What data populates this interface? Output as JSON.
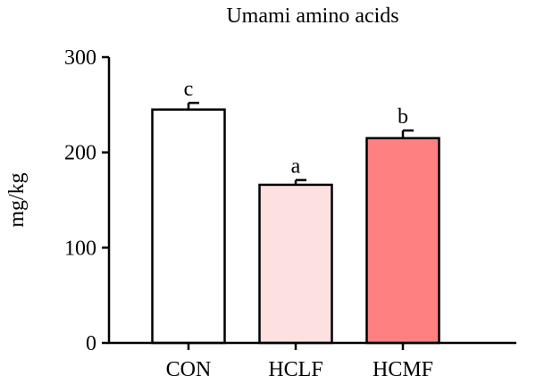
{
  "chart_data": {
    "type": "bar",
    "title": "Umami amino acids",
    "xlabel": "",
    "ylabel": "mg/kg",
    "ylim": [
      0,
      300
    ],
    "yticks": [
      0,
      100,
      200,
      300
    ],
    "grid": false,
    "categories": [
      "CON",
      "HCLF",
      "HCMF"
    ],
    "values": [
      245,
      166,
      215
    ],
    "errors": [
      7,
      5,
      8
    ],
    "significance": [
      "c",
      "a",
      "b"
    ],
    "colors": [
      "#ffffff",
      "#fde0e0",
      "#ff8080"
    ]
  }
}
